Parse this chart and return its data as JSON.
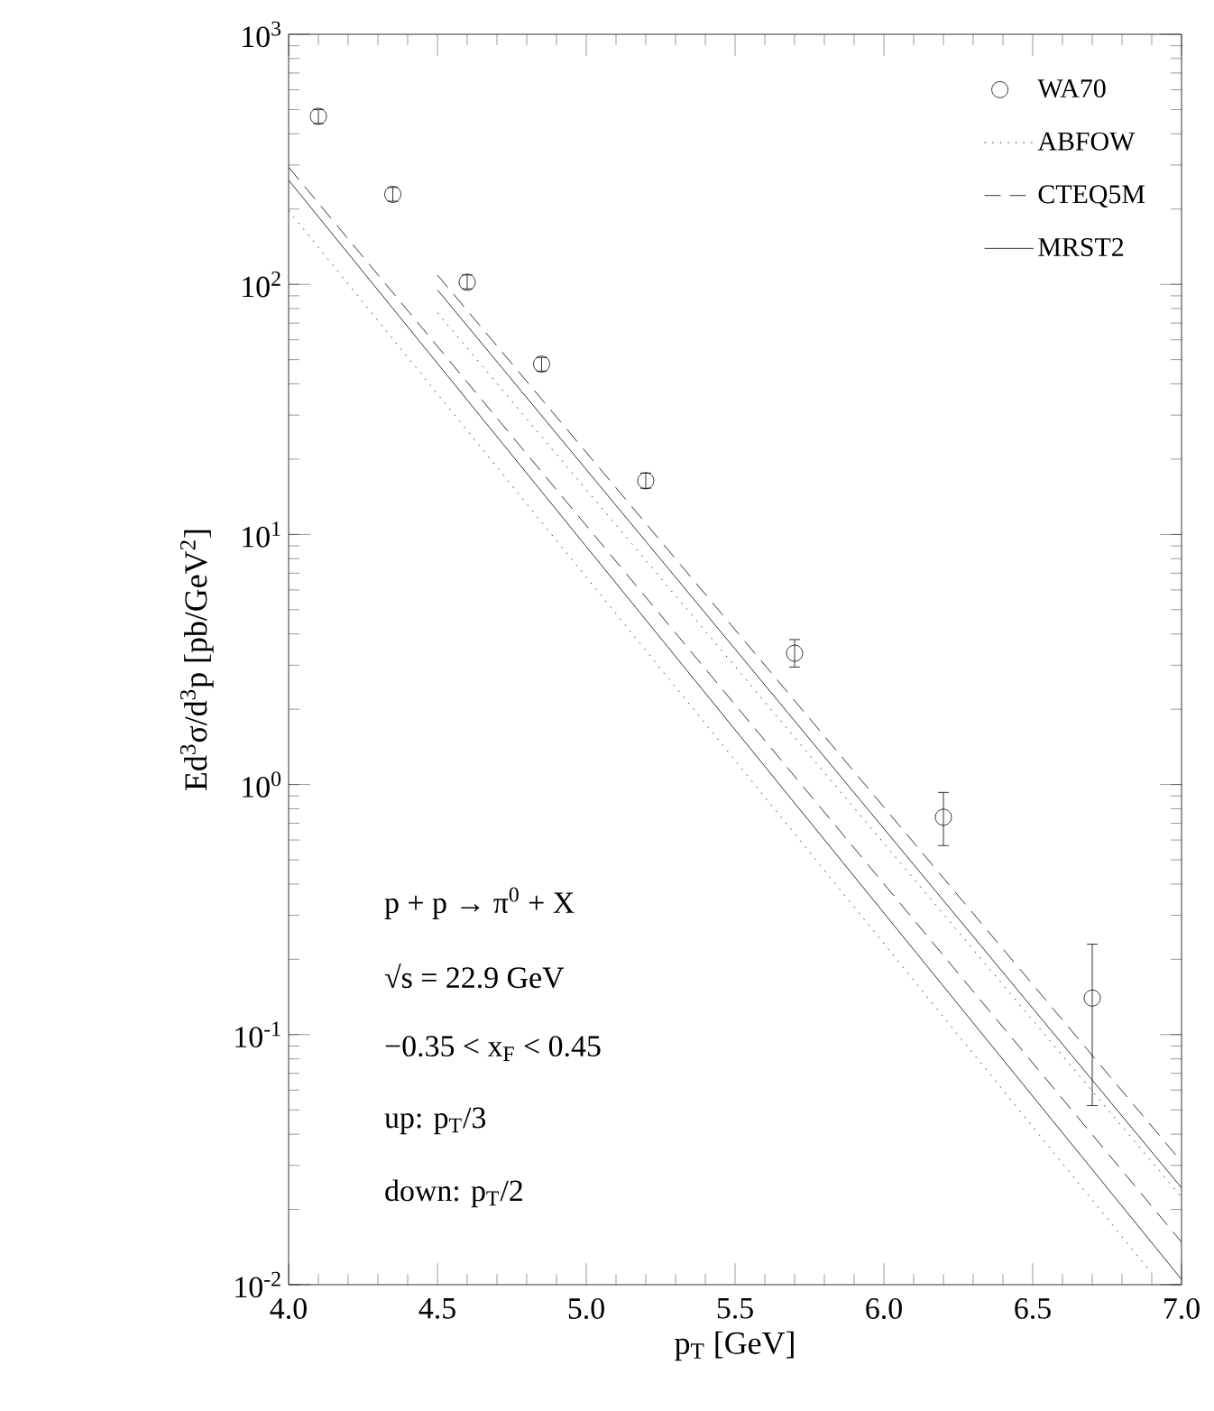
{
  "chart_data": {
    "type": "line",
    "xlabel": "p$_{T}$ [GeV]",
    "ylabel": "Ed$^{3}$σ/d$^{3}$p [pb/GeV$^{2}$]",
    "log": "y",
    "xlim": [
      4.0,
      7.0
    ],
    "ylim": [
      0.01,
      1000
    ],
    "xticks": [
      {
        "value": 4,
        "label": "4.0"
      },
      {
        "value": 4.5,
        "label": "4.5"
      },
      {
        "value": 5,
        "label": "5.0"
      },
      {
        "value": 5.5,
        "label": "5.5"
      },
      {
        "value": 6,
        "label": "6.0"
      },
      {
        "value": 6.5,
        "label": "6.5"
      },
      {
        "value": 7,
        "label": "7.0"
      }
    ],
    "yticks": [
      {
        "value": 0.01,
        "label": "10$^{-2}$"
      },
      {
        "value": 0.1,
        "label": "10$^{-1}$"
      },
      {
        "value": 1,
        "label": "10$^{0}$"
      },
      {
        "value": 10,
        "label": "10$^{1}$"
      },
      {
        "value": 100,
        "label": "10$^{2}$"
      },
      {
        "value": 1000,
        "label": "10$^{3}$"
      }
    ],
    "legend": "top right",
    "grid": false,
    "series": [
      {
        "name": "WA70",
        "type": "scatter",
        "marker": "circle",
        "color": "#000000",
        "x": [
          4.1,
          4.35,
          4.6,
          4.85,
          5.2,
          5.7,
          6.2,
          6.7
        ],
        "values": [
          470,
          229,
          102,
          48,
          16.4,
          3.35,
          0.74,
          0.14
        ],
        "errors": [
          [
            440,
            500
          ],
          [
            215,
            244
          ],
          [
            96,
            109
          ],
          [
            45,
            51
          ],
          [
            15.3,
            17.6
          ],
          [
            2.95,
            3.8
          ],
          [
            0.57,
            0.93
          ],
          [
            0.052,
            0.23
          ]
        ]
      },
      {
        "name": "ABFOW",
        "type": "line",
        "line_style": "dotted",
        "color": "#000000",
        "x": [
          4.5,
          7.0
        ],
        "values": [
          77,
          0.0224
        ]
      },
      {
        "name": "CTEQ5M",
        "type": "line",
        "line_style": "dashed",
        "color": "#000000",
        "x": [
          4.5,
          7.0
        ],
        "values": [
          109,
          0.031
        ]
      },
      {
        "name": "MRST2",
        "type": "line",
        "line_style": "solid",
        "color": "#000000",
        "x": [
          4.5,
          7.0
        ],
        "values": [
          95,
          0.0244
        ]
      },
      {
        "type": "line",
        "line_style": "dotted",
        "color": "#000000",
        "x": [
          4.0,
          6.9
        ],
        "values": [
          197,
          0.0111
        ]
      },
      {
        "type": "line",
        "line_style": "dashed",
        "color": "#000000",
        "x": [
          4.0,
          7.0
        ],
        "values": [
          294,
          0.0148
        ]
      },
      {
        "type": "line",
        "line_style": "solid",
        "color": "#000000",
        "x": [
          4.0,
          7.0
        ],
        "values": [
          261,
          0.0105
        ]
      }
    ],
    "annotations": [
      "p + p → π$^{0}$ + X",
      "√s = 22.9 GeV",
      "−0.35 < x$_{F}$ < 0.45",
      "up:     p$_{T}$/3",
      "down: p$_{T}$/2"
    ]
  }
}
